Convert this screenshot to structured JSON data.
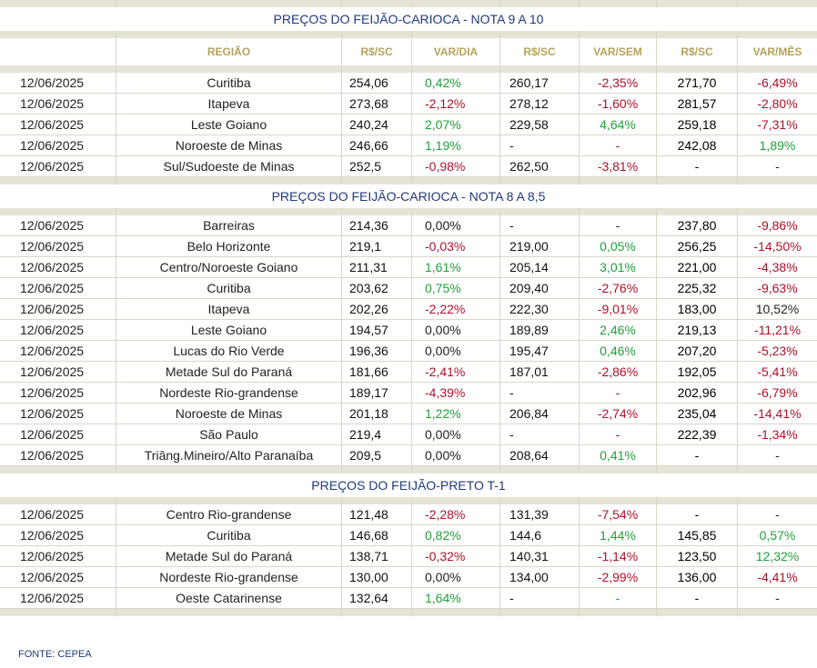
{
  "headers": {
    "region": "REGIÃO",
    "price1": "R$/SC",
    "var_day": "VAR/DIA",
    "price2": "R$/SC",
    "var_week": "VAR/SEM",
    "price3": "R$/SC",
    "var_month": "VAR/MÊS"
  },
  "sections": [
    {
      "title": "PREÇOS DO FEIJÃO-CARIOCA - NOTA 9 A 10",
      "show_header": true,
      "rows": [
        {
          "date": "12/06/2025",
          "region": "Curitiba",
          "p1": "254,06",
          "vd": "0,42%",
          "vd_c": "pos",
          "p2": "260,17",
          "vs": "-2,35%",
          "vs_c": "neg",
          "p3": "271,70",
          "vm": "-6,49%",
          "vm_c": "neg"
        },
        {
          "date": "12/06/2025",
          "region": "Itapeva",
          "p1": "273,68",
          "vd": "-2,12%",
          "vd_c": "neg",
          "p2": "278,12",
          "vs": "-1,60%",
          "vs_c": "neg",
          "p3": "281,57",
          "vm": "-2,80%",
          "vm_c": "neg"
        },
        {
          "date": "12/06/2025",
          "region": "Leste Goiano",
          "p1": "240,24",
          "vd": "2,07%",
          "vd_c": "pos",
          "p2": "229,58",
          "vs": "4,64%",
          "vs_c": "pos",
          "p3": "259,18",
          "vm": "-7,31%",
          "vm_c": "neg"
        },
        {
          "date": "12/06/2025",
          "region": "Noroeste de Minas",
          "p1": "246,66",
          "vd": "1,19%",
          "vd_c": "pos",
          "p2": "-",
          "vs": "-",
          "vs_c": "neg",
          "p3": "242,08",
          "vm": "1,89%",
          "vm_c": "pos"
        },
        {
          "date": "12/06/2025",
          "region": "Sul/Sudoeste de Minas",
          "p1": "252,5",
          "vd": "-0,98%",
          "vd_c": "neg",
          "p2": "262,50",
          "vs": "-3,81%",
          "vs_c": "neg",
          "p3": "-",
          "vm": "-",
          "vm_c": "neu"
        }
      ]
    },
    {
      "title": "PREÇOS DO FEIJÃO-CARIOCA - NOTA 8 A 8,5",
      "show_header": false,
      "rows": [
        {
          "date": "12/06/2025",
          "region": "Barreiras",
          "p1": "214,36",
          "vd": "0,00%",
          "vd_c": "neu",
          "p2": "-",
          "vs": "-",
          "vs_c": "neu",
          "p3": "237,80",
          "vm": "-9,86%",
          "vm_c": "neg"
        },
        {
          "date": "12/06/2025",
          "region": "Belo Horizonte",
          "p1": "219,1",
          "vd": "-0,03%",
          "vd_c": "neg",
          "p2": "219,00",
          "vs": "0,05%",
          "vs_c": "pos",
          "p3": "256,25",
          "vm": "-14,50%",
          "vm_c": "neg"
        },
        {
          "date": "12/06/2025",
          "region": "Centro/Noroeste Goiano",
          "p1": "211,31",
          "vd": "1,61%",
          "vd_c": "pos",
          "p2": "205,14",
          "vs": "3,01%",
          "vs_c": "pos",
          "p3": "221,00",
          "vm": "-4,38%",
          "vm_c": "neg"
        },
        {
          "date": "12/06/2025",
          "region": "Curitiba",
          "p1": "203,62",
          "vd": "0,75%",
          "vd_c": "pos",
          "p2": "209,40",
          "vs": "-2,76%",
          "vs_c": "neg",
          "p3": "225,32",
          "vm": "-9,63%",
          "vm_c": "neg"
        },
        {
          "date": "12/06/2025",
          "region": "Itapeva",
          "p1": "202,26",
          "vd": "-2,22%",
          "vd_c": "neg",
          "p2": "222,30",
          "vs": "-9,01%",
          "vs_c": "neg",
          "p3": "183,00",
          "vm": "10,52%",
          "vm_c": "neu"
        },
        {
          "date": "12/06/2025",
          "region": "Leste Goiano",
          "p1": "194,57",
          "vd": "0,00%",
          "vd_c": "neu",
          "p2": "189,89",
          "vs": "2,46%",
          "vs_c": "pos",
          "p3": "219,13",
          "vm": "-11,21%",
          "vm_c": "neg"
        },
        {
          "date": "12/06/2025",
          "region": "Lucas do Rio Verde",
          "p1": "196,36",
          "vd": "0,00%",
          "vd_c": "neu",
          "p2": "195,47",
          "vs": "0,46%",
          "vs_c": "pos",
          "p3": "207,20",
          "vm": "-5,23%",
          "vm_c": "neg"
        },
        {
          "date": "12/06/2025",
          "region": "Metade Sul do Paraná",
          "p1": "181,66",
          "vd": "-2,41%",
          "vd_c": "neg",
          "p2": "187,01",
          "vs": "-2,86%",
          "vs_c": "neg",
          "p3": "192,05",
          "vm": "-5,41%",
          "vm_c": "neg"
        },
        {
          "date": "12/06/2025",
          "region": "Nordeste Rio-grandense",
          "p1": "189,17",
          "vd": "-4,39%",
          "vd_c": "neg",
          "p2": "-",
          "vs": "-",
          "vs_c": "neg",
          "p3": "202,96",
          "vm": "-6,79%",
          "vm_c": "neg"
        },
        {
          "date": "12/06/2025",
          "region": "Noroeste de Minas",
          "p1": "201,18",
          "vd": "1,22%",
          "vd_c": "pos",
          "p2": "206,84",
          "vs": "-2,74%",
          "vs_c": "neg",
          "p3": "235,04",
          "vm": "-14,41%",
          "vm_c": "neg"
        },
        {
          "date": "12/06/2025",
          "region": "São Paulo",
          "p1": "219,4",
          "vd": "0,00%",
          "vd_c": "neu",
          "p2": "-",
          "vs": "-",
          "vs_c": "neg",
          "p3": "222,39",
          "vm": "-1,34%",
          "vm_c": "neg"
        },
        {
          "date": "12/06/2025",
          "region": "Triâng.Mineiro/Alto Paranaíba",
          "p1": "209,5",
          "vd": "0,00%",
          "vd_c": "neu",
          "p2": "208,64",
          "vs": "0,41%",
          "vs_c": "pos",
          "p3": "-",
          "vm": "-",
          "vm_c": "neu"
        }
      ]
    },
    {
      "title": "PREÇOS DO  FEIJÃO-PRETO  T-1",
      "show_header": false,
      "rows": [
        {
          "date": "12/06/2025",
          "region": "Centro Rio-grandense",
          "p1": "121,48",
          "vd": "-2,28%",
          "vd_c": "neg",
          "p2": "131,39",
          "vs": "-7,54%",
          "vs_c": "neg",
          "p3": "-",
          "vm": "-",
          "vm_c": "neu"
        },
        {
          "date": "12/06/2025",
          "region": "Curitiba",
          "p1": "146,68",
          "vd": "0,82%",
          "vd_c": "pos",
          "p2": "144,6",
          "vs": "1,44%",
          "vs_c": "pos",
          "p3": "145,85",
          "vm": "0,57%",
          "vm_c": "pos"
        },
        {
          "date": "12/06/2025",
          "region": "Metade Sul do Paraná",
          "p1": "138,71",
          "vd": "-0,32%",
          "vd_c": "neg",
          "p2": "140,31",
          "vs": "-1,14%",
          "vs_c": "neg",
          "p3": "123,50",
          "vm": "12,32%",
          "vm_c": "pos"
        },
        {
          "date": "12/06/2025",
          "region": "Nordeste Rio-grandense",
          "p1": "130,00",
          "vd": "0,00%",
          "vd_c": "neu",
          "p2": "134,00",
          "vs": "-2,99%",
          "vs_c": "neg",
          "p3": "136,00",
          "vm": "-4,41%",
          "vm_c": "neg"
        },
        {
          "date": "12/06/2025",
          "region": "Oeste Catarinense",
          "p1": "132,64",
          "vd": "1,64%",
          "vd_c": "pos",
          "p2": "-",
          "vs": "-",
          "vs_c": "pos",
          "p3": "-",
          "vm": "-",
          "vm_c": "neu"
        }
      ]
    }
  ],
  "footer": "FONTE: CEPEA",
  "colors": {
    "positive": "#22a03a",
    "negative": "#b0102a",
    "title": "#1f3a7a",
    "header": "#b3a35a",
    "band": "#e6e4d6"
  }
}
